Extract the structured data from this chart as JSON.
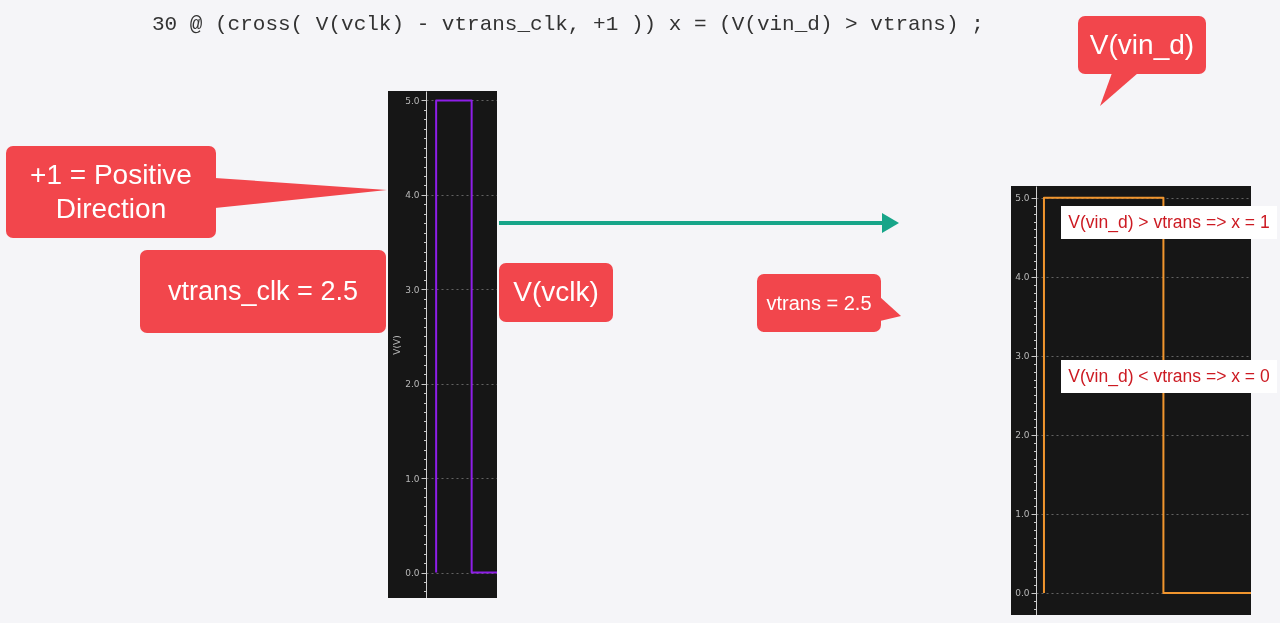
{
  "chart_data": [
    {
      "type": "step",
      "title": "30 @ (cross( V(vclk) - vtrans_clk, +1 )) x = (V(vin_d) > vtrans) ;",
      "ylabel": "V(V)",
      "categories": [
        null,
        null,
        null,
        null,
        null,
        null,
        null,
        null,
        null,
        null,
        null,
        null,
        null,
        null,
        null
      ],
      "series": [
        {
          "name": "V(vclk)",
          "color": "#8e1ee8",
          "values": [
            null,
            null,
            0,
            5,
            5,
            5,
            5,
            5,
            5,
            5,
            0,
            0,
            0,
            0,
            0
          ]
        }
      ],
      "ylim": [
        -0.27,
        5.1
      ],
      "yticks": [
        {
          "value": -0.2,
          "label": null
        },
        {
          "value": -0.1,
          "label": null
        },
        {
          "value": 0,
          "label": "0.0"
        },
        {
          "value": 0.1,
          "label": null
        },
        {
          "value": 0.2,
          "label": null
        },
        {
          "value": 0.3,
          "label": null
        },
        {
          "value": 0.4,
          "label": null
        },
        {
          "value": 0.5,
          "label": null
        },
        {
          "value": 0.6,
          "label": null
        },
        {
          "value": 0.7,
          "label": null
        },
        {
          "value": 0.8,
          "label": null
        },
        {
          "value": 0.9,
          "label": null
        },
        {
          "value": 1,
          "label": "1.0"
        },
        {
          "value": 1.1,
          "label": null
        },
        {
          "value": 1.2,
          "label": null
        },
        {
          "value": 1.3,
          "label": null
        },
        {
          "value": 1.4,
          "label": null
        },
        {
          "value": 1.5,
          "label": null
        },
        {
          "value": 1.6,
          "label": null
        },
        {
          "value": 1.7,
          "label": null
        },
        {
          "value": 1.8,
          "label": null
        },
        {
          "value": 1.9,
          "label": null
        },
        {
          "value": 2,
          "label": "2.0"
        },
        {
          "value": 2.1,
          "label": null
        },
        {
          "value": 2.2,
          "label": null
        },
        {
          "value": 2.3,
          "label": null
        },
        {
          "value": 2.4,
          "label": null
        },
        {
          "value": 2.5,
          "label": null
        },
        {
          "value": 2.6,
          "label": null
        },
        {
          "value": 2.7,
          "label": null
        },
        {
          "value": 2.8,
          "label": null
        },
        {
          "value": 2.9,
          "label": null
        },
        {
          "value": 3,
          "label": "3.0"
        },
        {
          "value": 3.1,
          "label": null
        },
        {
          "value": 3.2,
          "label": null
        },
        {
          "value": 3.3,
          "label": null
        },
        {
          "value": 3.4,
          "label": null
        },
        {
          "value": 3.5,
          "label": null
        },
        {
          "value": 3.6,
          "label": null
        },
        {
          "value": 3.7,
          "label": null
        },
        {
          "value": 3.8,
          "label": null
        },
        {
          "value": 3.9,
          "label": null
        },
        {
          "value": 4,
          "label": "4.0"
        },
        {
          "value": 4.1,
          "label": null
        },
        {
          "value": 4.2,
          "label": null
        },
        {
          "value": 4.3,
          "label": null
        },
        {
          "value": 4.4,
          "label": null
        },
        {
          "value": 4.5,
          "label": null
        },
        {
          "value": 4.6,
          "label": null
        },
        {
          "value": 4.7,
          "label": null
        },
        {
          "value": 4.8,
          "label": null
        },
        {
          "value": 4.9,
          "label": null
        },
        {
          "value": 5,
          "label": "5.0"
        }
      ],
      "grid": "y",
      "tick_labels": "y",
      "annotations": [
        "+1 = Positive Direction",
        "vtrans_clk = 2.5"
      ]
    },
    {
      "type": "step",
      "categories": [
        null,
        null,
        null,
        null,
        null,
        null,
        null,
        null,
        null,
        null,
        null,
        null,
        null,
        null,
        null,
        null,
        null,
        null,
        null,
        null,
        null,
        null,
        null,
        null,
        null,
        null,
        null,
        null
      ],
      "series": [
        {
          "name": "V(vin_d)",
          "color": "#f0952e",
          "values": [
            null,
            0,
            5,
            5,
            5,
            5,
            5,
            5,
            5,
            5,
            5,
            5,
            5,
            5,
            5,
            5,
            5,
            0,
            0,
            0,
            0,
            0,
            0,
            0,
            0,
            0,
            0,
            0
          ]
        }
      ],
      "ylim": [
        -0.28,
        5.15
      ],
      "yticks": [
        {
          "value": -0.2,
          "label": null
        },
        {
          "value": -0.1,
          "label": null
        },
        {
          "value": 0,
          "label": "0.0"
        },
        {
          "value": 0.1,
          "label": null
        },
        {
          "value": 0.2,
          "label": null
        },
        {
          "value": 0.3,
          "label": null
        },
        {
          "value": 0.4,
          "label": null
        },
        {
          "value": 0.5,
          "label": null
        },
        {
          "value": 0.6,
          "label": null
        },
        {
          "value": 0.7,
          "label": null
        },
        {
          "value": 0.8,
          "label": null
        },
        {
          "value": 0.9,
          "label": null
        },
        {
          "value": 1,
          "label": "1.0"
        },
        {
          "value": 1.1,
          "label": null
        },
        {
          "value": 1.2,
          "label": null
        },
        {
          "value": 1.3,
          "label": null
        },
        {
          "value": 1.4,
          "label": null
        },
        {
          "value": 1.5,
          "label": null
        },
        {
          "value": 1.6,
          "label": null
        },
        {
          "value": 1.7,
          "label": null
        },
        {
          "value": 1.8,
          "label": null
        },
        {
          "value": 1.9,
          "label": null
        },
        {
          "value": 2,
          "label": "2.0"
        },
        {
          "value": 2.1,
          "label": null
        },
        {
          "value": 2.2,
          "label": null
        },
        {
          "value": 2.3,
          "label": null
        },
        {
          "value": 2.4,
          "label": null
        },
        {
          "value": 2.5,
          "label": null
        },
        {
          "value": 2.6,
          "label": null
        },
        {
          "value": 2.7,
          "label": null
        },
        {
          "value": 2.8,
          "label": null
        },
        {
          "value": 2.9,
          "label": null
        },
        {
          "value": 3,
          "label": "3.0"
        },
        {
          "value": 3.1,
          "label": null
        },
        {
          "value": 3.2,
          "label": null
        },
        {
          "value": 3.3,
          "label": null
        },
        {
          "value": 3.4,
          "label": null
        },
        {
          "value": 3.5,
          "label": null
        },
        {
          "value": 3.6,
          "label": null
        },
        {
          "value": 3.7,
          "label": null
        },
        {
          "value": 3.8,
          "label": null
        },
        {
          "value": 3.9,
          "label": null
        },
        {
          "value": 4,
          "label": "4.0"
        },
        {
          "value": 4.1,
          "label": null
        },
        {
          "value": 4.2,
          "label": null
        },
        {
          "value": 4.3,
          "label": null
        },
        {
          "value": 4.4,
          "label": null
        },
        {
          "value": 4.5,
          "label": null
        },
        {
          "value": 4.6,
          "label": null
        },
        {
          "value": 4.7,
          "label": null
        },
        {
          "value": 4.8,
          "label": null
        },
        {
          "value": 4.9,
          "label": null
        },
        {
          "value": 5,
          "label": "5.0"
        }
      ],
      "grid": "y",
      "tick_labels": "y",
      "annotations": [
        "vtrans = 2.5",
        "V(vin_d) > vtrans => x = 1",
        "V(vin_d) < vtrans => x = 0"
      ]
    }
  ]
}
